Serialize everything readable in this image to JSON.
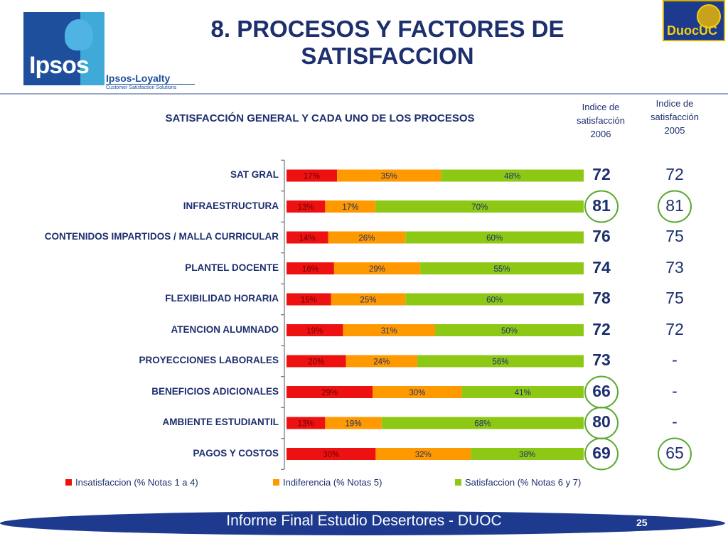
{
  "logos": {
    "ipsos_word": "Ipsos",
    "loyalty_label": "Ipsos-Loyalty",
    "loyalty_sub": "Customer Satisfaction Solutions",
    "duoc_word": "DuocUC"
  },
  "page": {
    "title": "8. PROCESOS Y FACTORES DE SATISFACCION",
    "footer": "Informe Final Estudio Desertores - DUOC",
    "page_number": "25"
  },
  "columns": {
    "head_2006": [
      "Indice de",
      "satisfacción",
      "2006"
    ],
    "head_2005": [
      "Indice de",
      "satisfacción",
      "2005"
    ]
  },
  "colors": {
    "insatisfaccion": "#ee1111",
    "indiferencia": "#ff9900",
    "satisfaccion": "#8dc815",
    "text": "#1d2f6e",
    "highlight_circle": "#5aa832"
  },
  "rows": [
    {
      "index_2006": "72",
      "index_2005": "72",
      "circle_2006": false,
      "circle_2005": false
    },
    {
      "index_2006": "81",
      "index_2005": "81",
      "circle_2006": true,
      "circle_2005": true
    },
    {
      "index_2006": "76",
      "index_2005": "75",
      "circle_2006": false,
      "circle_2005": false
    },
    {
      "index_2006": "74",
      "index_2005": "73",
      "circle_2006": false,
      "circle_2005": false
    },
    {
      "index_2006": "78",
      "index_2005": "75",
      "circle_2006": false,
      "circle_2005": false
    },
    {
      "index_2006": "72",
      "index_2005": "72",
      "circle_2006": false,
      "circle_2005": false
    },
    {
      "index_2006": "73",
      "index_2005": "-",
      "circle_2006": false,
      "circle_2005": false
    },
    {
      "index_2006": "66",
      "index_2005": "-",
      "circle_2006": true,
      "circle_2005": false
    },
    {
      "index_2006": "80",
      "index_2005": "-",
      "circle_2006": true,
      "circle_2005": false
    },
    {
      "index_2006": "69",
      "index_2005": "65",
      "circle_2006": true,
      "circle_2005": true
    }
  ],
  "chart_data": {
    "type": "bar",
    "orientation": "horizontal",
    "stacked": true,
    "percent_stacked": true,
    "title": "SATISFACCIÓN GENERAL Y CADA UNO DE LOS PROCESOS",
    "categories": [
      "SAT GRAL",
      "INFRAESTRUCTURA",
      "CONTENIDOS IMPARTIDOS / MALLA CURRICULAR",
      "PLANTEL DOCENTE",
      "FLEXIBILIDAD HORARIA",
      "ATENCION ALUMNADO",
      "PROYECCIONES LABORALES",
      "BENEFICIOS ADICIONALES",
      "AMBIENTE ESTUDIANTIL",
      "PAGOS Y COSTOS"
    ],
    "series": [
      {
        "name": "Insatisfaccion (% Notas 1 a 4)",
        "values": [
          17,
          13,
          14,
          16,
          15,
          19,
          20,
          29,
          13,
          30
        ]
      },
      {
        "name": "Indiferencia (% Notas 5)",
        "values": [
          35,
          17,
          26,
          29,
          25,
          31,
          24,
          30,
          19,
          32
        ]
      },
      {
        "name": "Satisfaccion (% Notas 6 y 7)",
        "values": [
          48,
          70,
          60,
          55,
          60,
          50,
          56,
          41,
          68,
          38
        ]
      }
    ],
    "value_suffix": "%",
    "legend_position": "bottom",
    "grid": false
  }
}
